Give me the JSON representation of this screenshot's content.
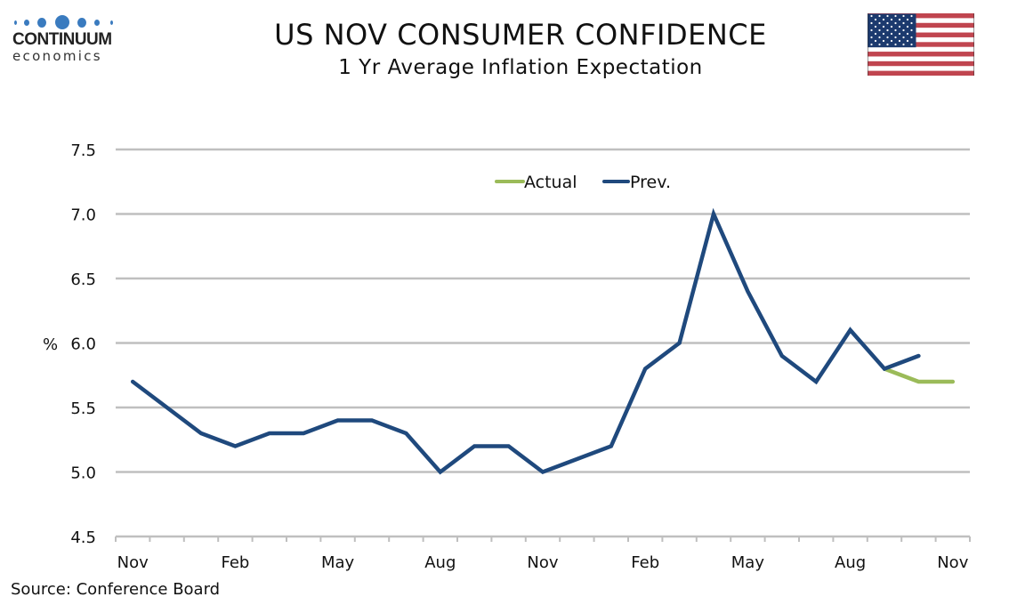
{
  "header": {
    "logo_name": "CONTINUUM",
    "logo_sub": "economics",
    "title": "US NOV CONSUMER CONFIDENCE",
    "subtitle": "1 Yr Average Inflation Expectation",
    "flag_icon": "us-flag-icon"
  },
  "footer": {
    "source": "Source: Conference Board"
  },
  "colors": {
    "actual": "#9bbb59",
    "prev": "#1f497d",
    "grid": "#bfbfbf"
  },
  "chart_data": {
    "type": "line",
    "title": "US NOV CONSUMER CONFIDENCE",
    "subtitle": "1 Yr Average Inflation Expectation",
    "xlabel": "",
    "ylabel": "%",
    "ylim": [
      4.5,
      7.5
    ],
    "yticks": [
      "4.5",
      "5.0",
      "5.5",
      "6.0",
      "6.5",
      "7.0",
      "7.5"
    ],
    "grid": true,
    "legend_position": "top-center",
    "x": [
      "Nov",
      "Dec",
      "Jan",
      "Feb",
      "Mar",
      "Apr",
      "May",
      "Jun",
      "Jul",
      "Aug",
      "Sep",
      "Oct",
      "Nov",
      "Dec",
      "Jan",
      "Feb",
      "Mar",
      "Apr",
      "May",
      "Jun",
      "Jul",
      "Aug",
      "Sep",
      "Oct",
      "Nov"
    ],
    "xtick_labels": [
      {
        "index": 0,
        "label": "Nov"
      },
      {
        "index": 3,
        "label": "Feb"
      },
      {
        "index": 6,
        "label": "May"
      },
      {
        "index": 9,
        "label": "Aug"
      },
      {
        "index": 12,
        "label": "Nov"
      },
      {
        "index": 15,
        "label": "Feb"
      },
      {
        "index": 18,
        "label": "May"
      },
      {
        "index": 21,
        "label": "Aug"
      },
      {
        "index": 24,
        "label": "Nov"
      }
    ],
    "series": [
      {
        "name": "Actual",
        "values": [
          null,
          null,
          null,
          null,
          null,
          null,
          null,
          null,
          null,
          null,
          null,
          null,
          null,
          null,
          null,
          null,
          null,
          null,
          null,
          null,
          null,
          null,
          5.8,
          5.7,
          5.7
        ]
      },
      {
        "name": "Prev.",
        "values": [
          5.7,
          5.5,
          5.3,
          5.2,
          5.3,
          5.3,
          5.4,
          5.4,
          5.3,
          5.0,
          5.2,
          5.2,
          5.0,
          5.1,
          5.2,
          5.8,
          6.0,
          7.0,
          6.4,
          5.9,
          5.7,
          6.1,
          5.8,
          5.9,
          null
        ]
      }
    ]
  }
}
